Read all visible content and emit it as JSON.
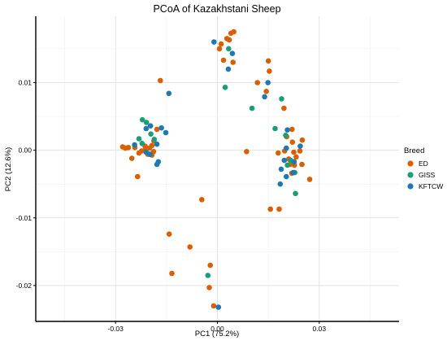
{
  "chart_data": {
    "type": "scatter",
    "title": "PCoA of Kazakhstani Sheep",
    "xlabel": "PC1 (75.2%)",
    "ylabel": "PC2 (12.6%)",
    "xlim": [
      -0.0535,
      0.0535
    ],
    "ylim": [
      -0.0253,
      0.0198
    ],
    "xticks": [
      -0.03,
      0.0,
      0.03
    ],
    "xtick_labels": [
      "-0.03",
      "0.00",
      "0.03"
    ],
    "yticks": [
      0.01,
      0.0,
      -0.01,
      -0.02
    ],
    "ytick_labels": [
      "0.01",
      "0.00",
      "-0.01",
      "-0.02"
    ],
    "grid": true,
    "legend": {
      "title": "Breed",
      "placement": "right"
    },
    "series": [
      {
        "name": "ED",
        "color": "#d95f02",
        "points": [
          [
            0.0048,
            0.0175
          ],
          [
            0.004,
            0.0173
          ],
          [
            0.0028,
            0.0165
          ],
          [
            0.0035,
            0.0163
          ],
          [
            0.0011,
            0.0157
          ],
          [
            0.0006,
            0.015
          ],
          [
            0.0018,
            0.0133
          ],
          [
            0.015,
            0.0132
          ],
          [
            0.0046,
            0.013
          ],
          [
            0.0153,
            0.0117
          ],
          [
            -0.0168,
            0.0103
          ],
          [
            0.0118,
            0.01
          ],
          [
            0.0144,
            0.0087
          ],
          [
            0.0196,
            0.0062
          ],
          [
            -0.0178,
            0.0031
          ],
          [
            0.022,
            0.0031
          ],
          [
            0.0204,
            0.002
          ],
          [
            0.025,
            0.0015
          ],
          [
            -0.0187,
            0.0014
          ],
          [
            0.0221,
            0.0012
          ],
          [
            -0.0193,
            0.0007
          ],
          [
            -0.0213,
            0.0006
          ],
          [
            -0.0279,
            0.0005
          ],
          [
            -0.0262,
            0.0004
          ],
          [
            -0.0243,
            0.0004
          ],
          [
            -0.0271,
            0.0003
          ],
          [
            -0.02,
            0.0003
          ],
          [
            -0.0212,
            0.0001
          ],
          [
            -0.0223,
            -0.0001
          ],
          [
            0.0198,
            -0.0001
          ],
          [
            0.0243,
            -0.0001
          ],
          [
            0.0086,
            -0.0002
          ],
          [
            -0.0188,
            -0.0002
          ],
          [
            0.0225,
            -0.0003
          ],
          [
            -0.0231,
            -0.0004
          ],
          [
            0.0179,
            -0.0004
          ],
          [
            -0.0205,
            -0.0006
          ],
          [
            -0.0193,
            -0.0007
          ],
          [
            0.0232,
            -0.001
          ],
          [
            -0.0252,
            -0.0012
          ],
          [
            0.021,
            -0.0013
          ],
          [
            0.0249,
            -0.0021
          ],
          [
            0.0214,
            -0.0021
          ],
          [
            0.0227,
            -0.0022
          ],
          [
            0.0219,
            -0.0034
          ],
          [
            -0.0235,
            -0.0039
          ],
          [
            0.0272,
            -0.0043
          ],
          [
            -0.0046,
            -0.0073
          ],
          [
            0.0156,
            -0.0087
          ],
          [
            0.0182,
            -0.0087
          ],
          [
            -0.0142,
            -0.0124
          ],
          [
            -0.0081,
            -0.0143
          ],
          [
            -0.0134,
            -0.0182
          ],
          [
            -0.0021,
            -0.017
          ],
          [
            -0.0024,
            -0.0203
          ],
          [
            -0.0011,
            -0.023
          ]
        ]
      },
      {
        "name": "GISS",
        "color": "#1b9e77",
        "points": [
          [
            0.0033,
            0.015
          ],
          [
            0.0023,
            0.0093
          ],
          [
            0.0102,
            0.0062
          ],
          [
            0.0189,
            0.0076
          ],
          [
            -0.0221,
            0.0045
          ],
          [
            -0.0209,
            0.0041
          ],
          [
            -0.0196,
            0.0024
          ],
          [
            0.017,
            0.0032
          ],
          [
            -0.0231,
            0.0017
          ],
          [
            -0.0186,
            0.0016
          ],
          [
            -0.0222,
            0.001
          ],
          [
            0.0201,
            0.0022
          ],
          [
            -0.0199,
            -0.0006
          ],
          [
            0.0216,
            -0.0015
          ],
          [
            0.0206,
            -0.0022
          ],
          [
            0.0228,
            -0.0033
          ],
          [
            0.023,
            -0.0064
          ],
          [
            -0.0028,
            -0.0185
          ]
        ]
      },
      {
        "name": "KFTCW",
        "color": "#1f78b4",
        "points": [
          [
            -0.001,
            0.016
          ],
          [
            0.0044,
            0.0143
          ],
          [
            0.0032,
            0.012
          ],
          [
            0.0149,
            0.01
          ],
          [
            0.0139,
            0.0079
          ],
          [
            -0.0143,
            0.0084
          ],
          [
            -0.0197,
            0.0036
          ],
          [
            -0.021,
            0.0032
          ],
          [
            -0.0165,
            0.0033
          ],
          [
            -0.0152,
            0.0026
          ],
          [
            -0.0244,
            0.0008
          ],
          [
            -0.021,
            -0.0003
          ],
          [
            -0.0178,
            0.0009
          ],
          [
            0.0206,
            0.003
          ],
          [
            0.0244,
            0.0006
          ],
          [
            0.0203,
            0.0003
          ],
          [
            -0.0199,
            -0.0006
          ],
          [
            0.0197,
            -0.0015
          ],
          [
            0.0226,
            -0.0017
          ],
          [
            0.0188,
            -0.0028
          ],
          [
            0.0223,
            -0.0033
          ],
          [
            0.0203,
            -0.0039
          ],
          [
            0.0185,
            -0.005
          ],
          [
            -0.0174,
            -0.0017
          ],
          [
            -0.0178,
            -0.0021
          ],
          [
            0.0003,
            -0.0232
          ]
        ]
      }
    ]
  }
}
